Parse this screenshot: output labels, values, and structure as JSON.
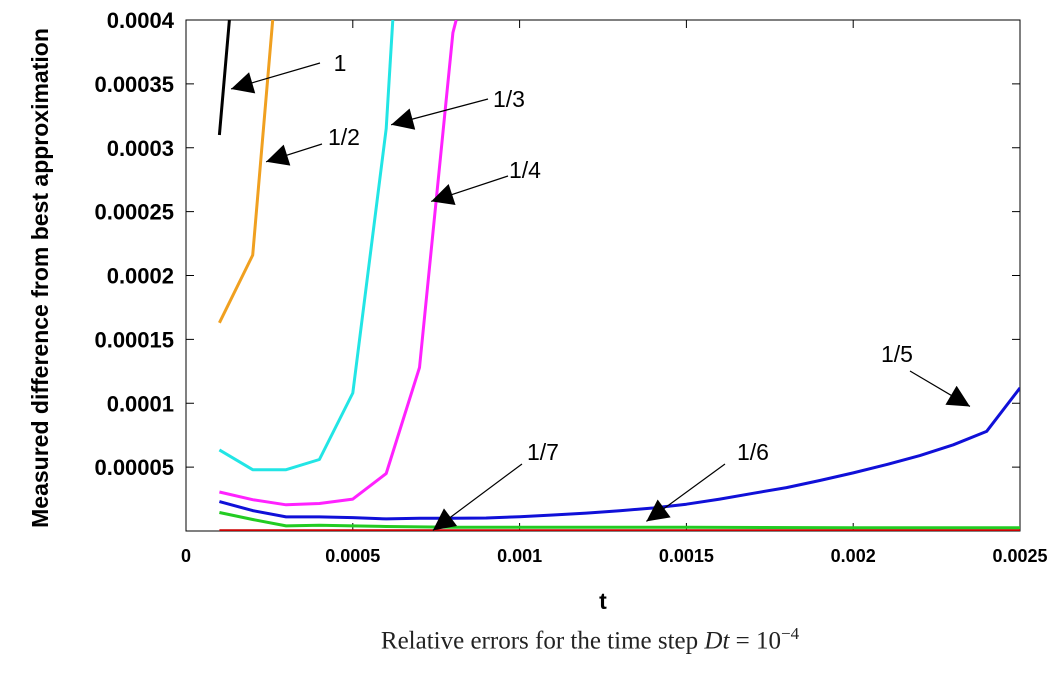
{
  "chart_data": {
    "type": "line",
    "xlabel": "t",
    "ylabel": "Measured difference from best approximation",
    "xlim": [
      0,
      0.0025
    ],
    "ylim": [
      0,
      0.0004
    ],
    "x_ticks": [
      "0",
      "0.0005",
      "0.001",
      "0.0015",
      "0.002",
      "0.0025"
    ],
    "y_ticks": [
      "0.00005",
      "0.0001",
      "0.00015",
      "0.0002",
      "0.00025",
      "0.0003",
      "0.00035",
      "0.0004"
    ],
    "grid": false,
    "series": [
      {
        "name": "1",
        "color": "#000000",
        "x": [
          0.0001,
          0.00013
        ],
        "y": [
          0.00031,
          0.0004
        ]
      },
      {
        "name": "1/2",
        "color": "#f0a020",
        "x": [
          0.0001,
          0.0002,
          0.00026
        ],
        "y": [
          0.000163,
          0.000216,
          0.0004
        ]
      },
      {
        "name": "1/3",
        "color": "#22e5e5",
        "x": [
          0.0001,
          0.0002,
          0.0003,
          0.0004,
          0.0005,
          0.0006,
          0.00062
        ],
        "y": [
          6.35e-05,
          4.8e-05,
          4.8e-05,
          5.6e-05,
          0.000108,
          0.000315,
          0.0004
        ]
      },
      {
        "name": "1/4",
        "color": "#ff22ff",
        "x": [
          0.0001,
          0.0002,
          0.0003,
          0.0004,
          0.0005,
          0.0006,
          0.0007,
          0.0008,
          0.00081
        ],
        "y": [
          3.05e-05,
          2.45e-05,
          2.05e-05,
          2.15e-05,
          2.5e-05,
          4.5e-05,
          0.000128,
          0.00039,
          0.0004
        ]
      },
      {
        "name": "1/5",
        "color": "#1010d8",
        "x": [
          0.0001,
          0.0002,
          0.0003,
          0.0004,
          0.0005,
          0.0006,
          0.0007,
          0.0008,
          0.0009,
          0.001,
          0.0011,
          0.0012,
          0.0013,
          0.0014,
          0.0015,
          0.0016,
          0.0017,
          0.0018,
          0.0019,
          0.002,
          0.0021,
          0.0022,
          0.0023,
          0.0024,
          0.0025
        ],
        "y": [
          2.3e-05,
          1.6e-05,
          1.1e-05,
          1.1e-05,
          1.05e-05,
          9.5e-06,
          1e-05,
          1e-05,
          1.02e-05,
          1.12e-05,
          1.25e-05,
          1.4e-05,
          1.58e-05,
          1.8e-05,
          2.1e-05,
          2.5e-05,
          2.95e-05,
          3.4e-05,
          3.95e-05,
          4.55e-05,
          5.2e-05,
          5.9e-05,
          6.75e-05,
          7.8e-05,
          0.000112
        ]
      },
      {
        "name": "1/6",
        "color": "#22cc22",
        "x": [
          0.0001,
          0.0002,
          0.0003,
          0.0004,
          0.0005,
          0.0006,
          0.0008,
          0.001,
          0.0015,
          0.002,
          0.0025
        ],
        "y": [
          1.45e-05,
          9e-06,
          4e-06,
          4.5e-06,
          4e-06,
          3.5e-06,
          3e-06,
          3e-06,
          3e-06,
          2.5e-06,
          2.5e-06
        ]
      },
      {
        "name": "1/7",
        "color": "#cc0000",
        "x": [
          0.0001,
          0.0025
        ],
        "y": [
          2e-07,
          2e-07
        ]
      }
    ],
    "annotations": [
      {
        "label": "1",
        "series": "1"
      },
      {
        "label": "1/2",
        "series": "1/2"
      },
      {
        "label": "1/3",
        "series": "1/3"
      },
      {
        "label": "1/4",
        "series": "1/4"
      },
      {
        "label": "1/5",
        "series": "1/5"
      },
      {
        "label": "1/6",
        "series": "1/6"
      },
      {
        "label": "1/7",
        "series": "1/7"
      }
    ]
  },
  "caption": {
    "prefix": "Relative errors for the time step ",
    "var": "Dt",
    "eq": " = 10",
    "exp": "−4"
  }
}
